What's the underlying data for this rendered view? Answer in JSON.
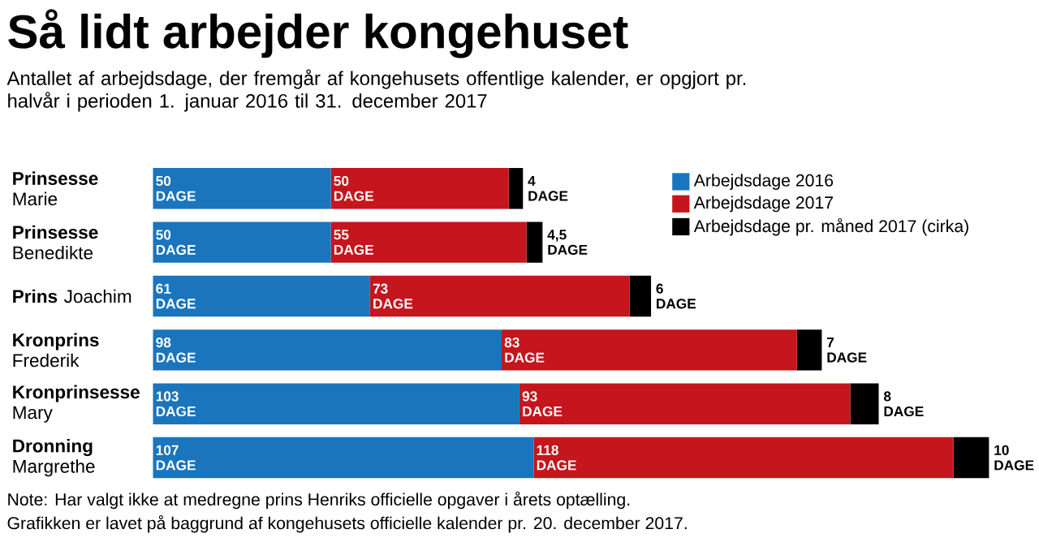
{
  "chart_data": {
    "type": "bar",
    "orientation": "horizontal",
    "stacked": true,
    "title": "Så lidt arbejder kongehuset",
    "subtitle": "Antallet af arbejdsdage, der fremgår af kongehusets offentlige kalender, er opgjort pr. halvår i perioden 1. januar 2016 til 31. december 2017",
    "categories": [
      "**Prinsesse** Marie",
      "**Prinsesse** Benedikte",
      "**Prins** Joachim",
      "**Kronprins** Frederik",
      "**Kronprinsesse** Mary",
      "**Dronning** Margrethe"
    ],
    "series": [
      {
        "name": "Arbejdsdage 2016",
        "color": "#1a75bc",
        "values": [
          50,
          50,
          61,
          98,
          103,
          107
        ],
        "value_labels": [
          "50 DAGE",
          "50 DAGE",
          "61 DAGE",
          "98 DAGE",
          "103 DAGE",
          "107 DAGE"
        ]
      },
      {
        "name": "Arbejdsdage 2017",
        "color": "#c4161c",
        "values": [
          50,
          55,
          73,
          83,
          93,
          118
        ],
        "value_labels": [
          "50 DAGE",
          "55 DAGE",
          "73 DAGE",
          "83 DAGE",
          "93 DAGE",
          "118 DAGE"
        ]
      },
      {
        "name": "Arbejdsdage pr. måned 2017 (cirka)",
        "color": "#000000",
        "values": [
          4,
          4.5,
          6,
          7,
          8,
          10
        ],
        "value_labels": [
          "4 DAGE",
          "4,5 DAGE",
          "6 DAGE",
          "7 DAGE",
          "8 DAGE",
          "10 DAGE"
        ]
      }
    ],
    "tick_labels": "y",
    "legend": "top right",
    "annotations": [
      "Note: Har valgt ikke at medregne prins Henriks officielle opgaver i årets optælling.",
      "Grafikken er lavet på baggrund af kongehusets officielle kalender pr. 20. december 2017."
    ]
  }
}
